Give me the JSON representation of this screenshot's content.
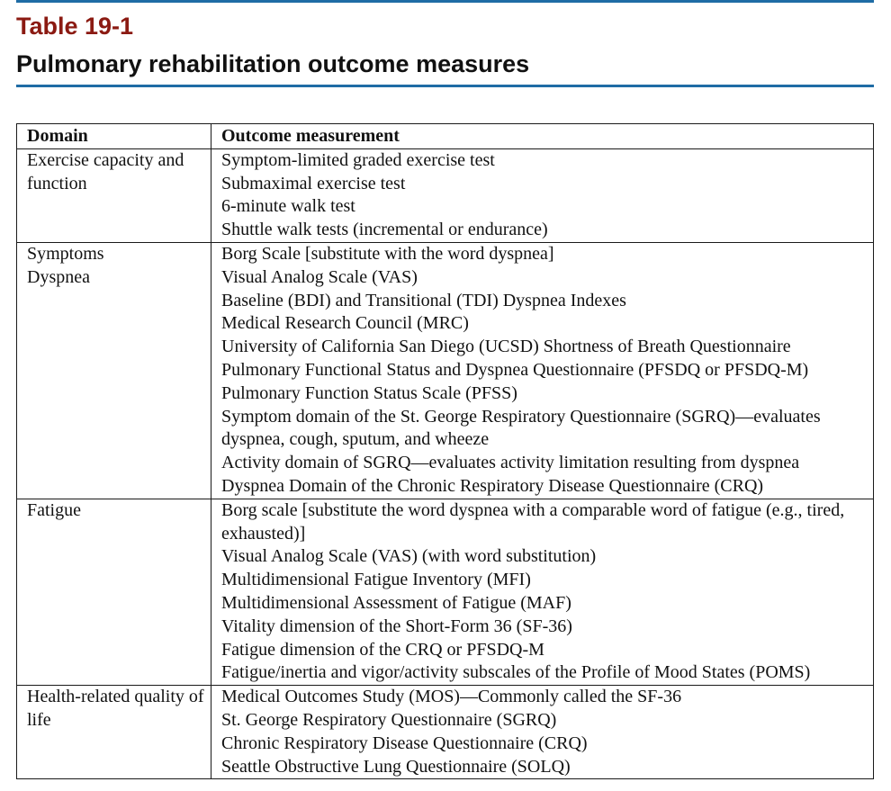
{
  "header": {
    "table_label": "Table 19-1",
    "title": "Pulmonary rehabilitation outcome measures"
  },
  "colors": {
    "label_color": "#8b1a12",
    "rule_color": "#1f6ca5"
  },
  "table": {
    "columns": [
      "Domain",
      "Outcome measurement"
    ],
    "rows": [
      {
        "domain": [
          "Exercise capacity and function"
        ],
        "measures": [
          "Symptom-limited graded exercise test",
          "Submaximal exercise test",
          "6-minute walk test",
          "Shuttle walk tests (incremental or endurance)"
        ]
      },
      {
        "domain": [
          "Symptoms",
          "Dyspnea"
        ],
        "measures": [
          "Borg Scale [substitute with the word dyspnea]",
          "Visual Analog Scale (VAS)",
          "Baseline (BDI) and Transitional (TDI) Dyspnea Indexes",
          "Medical Research Council (MRC)",
          "University of California San Diego (UCSD) Shortness of Breath Questionnaire",
          "Pulmonary Functional Status and Dyspnea Questionnaire (PFSDQ or PFSDQ-M)",
          "Pulmonary Function Status Scale (PFSS)",
          "Symptom domain of the St. George Respiratory Questionnaire (SGRQ)—evaluates dyspnea, cough, sputum, and wheeze",
          "Activity domain of SGRQ—evaluates activity limitation resulting from dyspnea",
          "Dyspnea Domain of the Chronic Respiratory Disease Questionnaire (CRQ)"
        ]
      },
      {
        "domain": [
          "Fatigue"
        ],
        "measures": [
          "Borg scale [substitute the word dyspnea with a comparable word of fatigue (e.g., tired, exhausted)]",
          "Visual Analog Scale (VAS) (with word substitution)",
          "Multidimensional Fatigue Inventory (MFI)",
          "Multidimensional Assessment of Fatigue (MAF)",
          "Vitality dimension of the Short-Form 36 (SF-36)",
          "Fatigue dimension of the CRQ or PFSDQ-M",
          "Fatigue/inertia and vigor/activity subscales of the Profile of Mood States (POMS)"
        ]
      },
      {
        "domain": [
          "Health-related quality of life"
        ],
        "measures": [
          "Medical Outcomes Study (MOS)—Commonly called the SF-36",
          "St. George Respiratory Questionnaire (SGRQ)",
          "Chronic Respiratory Disease Questionnaire (CRQ)",
          "Seattle Obstructive Lung Questionnaire (SOLQ)"
        ]
      }
    ]
  }
}
